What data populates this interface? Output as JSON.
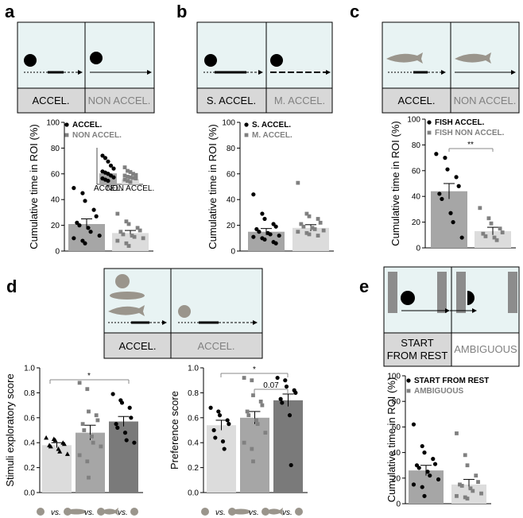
{
  "panel_labels": [
    "a",
    "b",
    "c",
    "d",
    "e"
  ],
  "schematics": {
    "a": {
      "left": "ACCEL.",
      "right": "NON ACCEL."
    },
    "b": {
      "left": "S. ACCEL.",
      "right": "M. ACCEL."
    },
    "c": {
      "left": "ACCEL.",
      "right": "NON ACCEL."
    },
    "d": {
      "left": "ACCEL.",
      "right": "ACCEL."
    },
    "e": {
      "left_line1": "START",
      "left_line2": "FROM REST",
      "right": "AMBIGUOUS"
    }
  },
  "colors": {
    "dark": "#000000",
    "gray": "#808080",
    "bar_dark": "#a6a6a6",
    "bar_light": "#dcdcdc",
    "bar_darker": "#7a7a7a",
    "box_fill": "#e8f3f3",
    "label_fill": "#d8d8d8"
  },
  "chart_data": [
    {
      "id": "a",
      "type": "bar",
      "ylabel": "Cumulative time in ROI (%)",
      "ylim": [
        0,
        100
      ],
      "yticks": [
        0,
        20,
        40,
        60,
        80,
        100
      ],
      "legend": [
        "ACCEL.",
        "NON ACCEL."
      ],
      "categories": [
        "ACCEL.",
        "NON ACCEL."
      ],
      "values": [
        21,
        14
      ],
      "sem": [
        4,
        2
      ],
      "points": [
        [
          49,
          45,
          39,
          32,
          27,
          22,
          20,
          18,
          15,
          12,
          10,
          8,
          6
        ],
        [
          29,
          23,
          21,
          18,
          16,
          15,
          13,
          12,
          11,
          10,
          8,
          6,
          4
        ]
      ],
      "inset": {
        "categories": [
          "ACCEL.",
          "NON ACCEL."
        ],
        "values": [
          30,
          14
        ]
      }
    },
    {
      "id": "b",
      "type": "bar",
      "ylabel": "Cumulative time in ROI (%)",
      "ylim": [
        0,
        100
      ],
      "yticks": [
        0,
        20,
        40,
        60,
        80,
        100
      ],
      "legend": [
        "S. ACCEL.",
        "M. ACCEL."
      ],
      "values": [
        15,
        18
      ],
      "sem": [
        2.5,
        2.5
      ],
      "points": [
        [
          44,
          29,
          25,
          21,
          19,
          17,
          15,
          14,
          13,
          12,
          11,
          10,
          9,
          7,
          6
        ],
        [
          53,
          29,
          27,
          25,
          22,
          21,
          19,
          18,
          17,
          16,
          15,
          14,
          13,
          12
        ]
      ]
    },
    {
      "id": "c",
      "type": "bar",
      "ylabel": "Cumulative time in ROI (%)",
      "ylim": [
        0,
        100
      ],
      "yticks": [
        0,
        20,
        40,
        60,
        80,
        100
      ],
      "legend": [
        "FISH ACCEL.",
        "FISH NON ACCEL."
      ],
      "annotation": "**",
      "values": [
        44,
        13
      ],
      "sem": [
        6,
        3
      ],
      "points": [
        [
          73,
          70,
          61,
          55,
          48,
          42,
          38,
          27,
          20,
          8
        ],
        [
          31,
          23,
          19,
          15,
          12,
          11,
          9,
          8,
          6
        ]
      ]
    },
    {
      "id": "d1",
      "type": "bar",
      "ylabel": "Stimuli exploratory score",
      "ylim": [
        0,
        1
      ],
      "yticks": [
        0,
        0.2,
        0.4,
        0.6,
        0.8,
        1.0
      ],
      "annotation": "*",
      "values": [
        0.38,
        0.48,
        0.57
      ],
      "sem": [
        0.02,
        0.06,
        0.04
      ],
      "points": [
        [
          0.44,
          0.43,
          0.42,
          0.4,
          0.39,
          0.38,
          0.37,
          0.35,
          0.33,
          0.31
        ],
        [
          0.88,
          0.83,
          0.65,
          0.62,
          0.58,
          0.55,
          0.5,
          0.45,
          0.4,
          0.37,
          0.3,
          0.25,
          0.12
        ],
        [
          0.79,
          0.74,
          0.72,
          0.68,
          0.6,
          0.55,
          0.52,
          0.48,
          0.42,
          0.4
        ]
      ],
      "icons": [
        "vs.",
        "vs.",
        "vs."
      ]
    },
    {
      "id": "d2",
      "type": "bar",
      "ylabel": "Preference score",
      "ylim": [
        0,
        1
      ],
      "yticks": [
        0,
        0.2,
        0.4,
        0.6,
        0.8,
        1.0
      ],
      "annotations": [
        "*",
        "0.07"
      ],
      "values": [
        0.54,
        0.6,
        0.74
      ],
      "sem": [
        0.04,
        0.05,
        0.05
      ],
      "points": [
        [
          0.68,
          0.65,
          0.62,
          0.58,
          0.55,
          0.5,
          0.44,
          0.41,
          0.35
        ],
        [
          0.92,
          0.9,
          0.78,
          0.73,
          0.7,
          0.65,
          0.62,
          0.58,
          0.55,
          0.48,
          0.4,
          0.35,
          0.25
        ],
        [
          0.92,
          0.9,
          0.85,
          0.82,
          0.8,
          0.75,
          0.72,
          0.62,
          0.22
        ]
      ],
      "icons": [
        "vs.",
        "vs.",
        "vs."
      ]
    },
    {
      "id": "e",
      "type": "bar",
      "ylabel": "Cumulative time in ROI (%)",
      "ylim": [
        0,
        100
      ],
      "yticks": [
        0,
        20,
        40,
        60,
        80,
        100
      ],
      "legend": [
        "START FROM REST",
        "AMBIGUOUS"
      ],
      "values": [
        26,
        15
      ],
      "sem": [
        4,
        4
      ],
      "points": [
        [
          62,
          45,
          40,
          35,
          31,
          30,
          28,
          25,
          22,
          19,
          15,
          13,
          6
        ],
        [
          55,
          38,
          30,
          22,
          17,
          15,
          14,
          12,
          10,
          8,
          6,
          5,
          4
        ]
      ]
    }
  ]
}
